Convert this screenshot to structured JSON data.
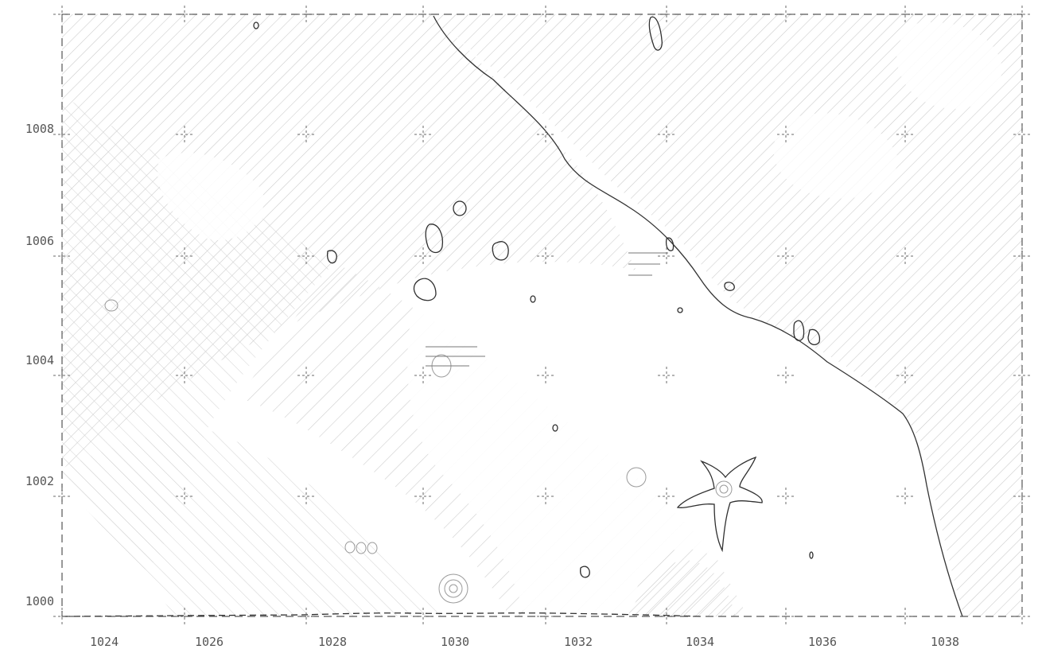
{
  "map": {
    "x_axis": {
      "ticks": [
        "1024",
        "1026",
        "1028",
        "1030",
        "1032",
        "1034",
        "1036",
        "1038"
      ]
    },
    "y_axis": {
      "ticks": [
        "1008",
        "1006",
        "1004",
        "1002",
        "1000"
      ]
    },
    "frame": {
      "x_range": [
        1023.8,
        1039.9
      ],
      "y_range": [
        999.9,
        1009.9
      ]
    },
    "colors": {
      "ink": "#333333",
      "hatch": "#c8c8c8",
      "label": "#555555"
    }
  }
}
